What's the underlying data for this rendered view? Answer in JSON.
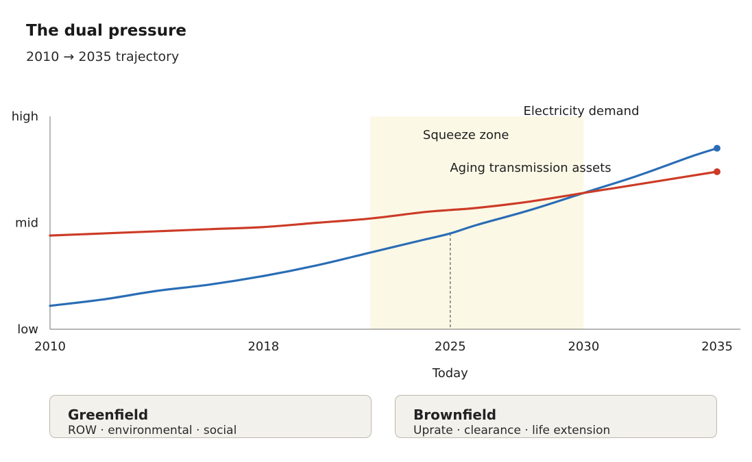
{
  "header": {
    "title": "The dual pressure",
    "subtitle": "2010 → 2035 trajectory"
  },
  "chart_data": {
    "type": "line",
    "xlabel": "",
    "ylabel": "",
    "x_ticks": [
      "2010",
      "2018",
      "2025",
      "2030",
      "2035"
    ],
    "y_ticks": [
      "low",
      "mid",
      "high"
    ],
    "xlim": [
      2010,
      2035
    ],
    "ylim": [
      0,
      1
    ],
    "grid": false,
    "series": [
      {
        "name": "Electricity demand",
        "color": "#2a6db5",
        "x": [
          2010,
          2012,
          2014,
          2016,
          2018,
          2020,
          2022,
          2024,
          2025,
          2026,
          2028,
          2030,
          2032,
          2034,
          2035
        ],
        "y": [
          0.11,
          0.14,
          0.18,
          0.21,
          0.25,
          0.3,
          0.36,
          0.42,
          0.45,
          0.49,
          0.56,
          0.64,
          0.72,
          0.81,
          0.85
        ],
        "end_marker": true
      },
      {
        "name": "Aging transmission assets",
        "color": "#cc3b26",
        "x": [
          2010,
          2012,
          2014,
          2016,
          2018,
          2020,
          2022,
          2024,
          2025,
          2026,
          2028,
          2030,
          2032,
          2034,
          2035
        ],
        "y": [
          0.44,
          0.45,
          0.46,
          0.47,
          0.48,
          0.5,
          0.52,
          0.55,
          0.56,
          0.57,
          0.6,
          0.64,
          0.68,
          0.72,
          0.74
        ],
        "end_marker": true
      }
    ],
    "shaded_region": {
      "label": "Squeeze zone",
      "x_start": 2022,
      "x_end": 2030,
      "color": "#fcf8e6"
    },
    "reference_line": {
      "x": 2025,
      "label": "Today"
    }
  },
  "pills": [
    {
      "title": "Greenfield",
      "subtitle": "ROW · environmental · social"
    },
    {
      "title": "Brownfield",
      "subtitle": "Uprate · clearance · life extension"
    }
  ]
}
